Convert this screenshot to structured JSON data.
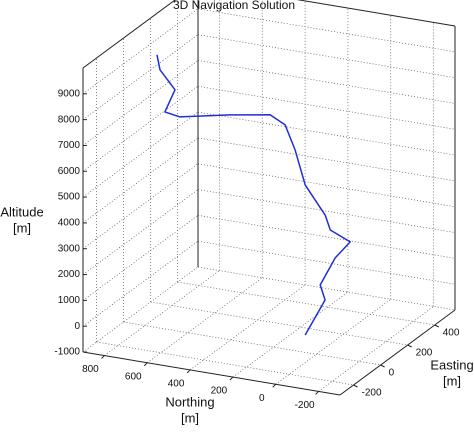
{
  "chart_data": {
    "type": "line3d",
    "title": "3D Navigation Solution",
    "xlabel": [
      "Northing",
      "[m]"
    ],
    "ylabel": [
      "Easting",
      "[m]"
    ],
    "zlabel": [
      "Altitude",
      "[m]"
    ],
    "xlim": [
      -300,
      900
    ],
    "ylim": [
      -300,
      550
    ],
    "zlim": [
      -1000,
      10000
    ],
    "xticks": [
      -200,
      0,
      200,
      400,
      600,
      800
    ],
    "yticks": [
      -200,
      0,
      200,
      400
    ],
    "zticks": [
      -1000,
      0,
      1000,
      2000,
      3000,
      4000,
      5000,
      6000,
      7000,
      8000,
      9000
    ],
    "grid": true,
    "series": [
      {
        "color": "#1f2fd6",
        "x": [
          744,
          730,
          660,
          707,
          637,
          403,
          216,
          146,
          99,
          52,
          6,
          -41,
          -65,
          -158,
          -88,
          -18,
          -41,
          52
        ],
        "y": [
          0,
          0,
          0,
          0,
          0,
          0,
          0,
          0,
          0,
          0,
          0,
          0,
          0,
          0,
          0,
          0,
          0,
          0
        ],
        "z": [
          9566,
          9004,
          8326,
          7407,
          7310,
          7713,
          7973,
          7682,
          6779,
          5488,
          4969,
          4453,
          3903,
          3570,
          2853,
          1709,
          1159,
          -326
        ]
      }
    ]
  }
}
